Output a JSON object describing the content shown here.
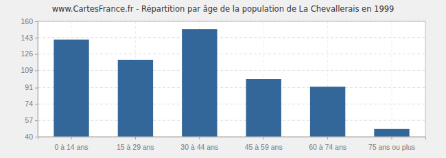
{
  "chart_data": {
    "type": "bar",
    "title": "www.CartesFrance.fr - Répartition par âge de la population de La Chevallerais en 1999",
    "categories": [
      "0 à 14 ans",
      "15 à 29 ans",
      "30 à 44 ans",
      "45 à 59 ans",
      "60 à 74 ans",
      "75 ans ou plus"
    ],
    "values": [
      141,
      120,
      152,
      100,
      92,
      48
    ],
    "color": "#336699",
    "ylim": [
      40,
      160
    ],
    "yticks": [
      40,
      57,
      74,
      91,
      109,
      126,
      143,
      160
    ],
    "grid": true
  }
}
